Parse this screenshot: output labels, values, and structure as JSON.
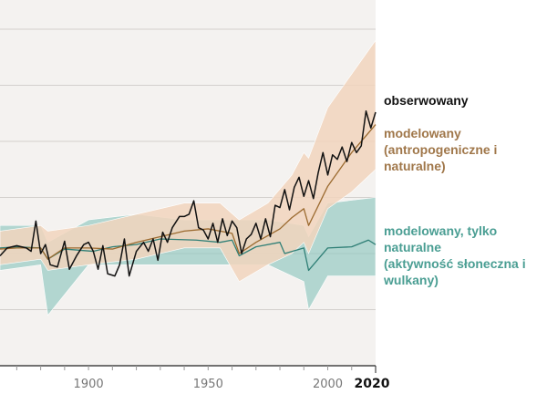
{
  "chart_data": {
    "type": "line",
    "xlim": [
      1863,
      2020
    ],
    "ylim": [
      -1.0,
      2.0
    ],
    "y_gridlines": [
      -0.5,
      0.0,
      0.5,
      1.0,
      1.5,
      2.0
    ],
    "grid": true,
    "x_ticks": [
      "1900",
      "1950",
      "2000"
    ],
    "x_end_label": "2020",
    "colors": {
      "observed": "#111111",
      "anthropogenic": "#9b6a2f",
      "natural": "#2f7f76",
      "anthro_band": "#f1d5bd",
      "natural_band": "#8fc6bf",
      "plot_bg": "#f4f2f0"
    },
    "series": [
      {
        "name": "obserwowany",
        "color": "#111111",
        "x": [
          1863,
          1866,
          1870,
          1874,
          1876,
          1878,
          1880,
          1882,
          1884,
          1887,
          1890,
          1892,
          1895,
          1898,
          1900,
          1902,
          1904,
          1906,
          1908,
          1911,
          1913,
          1915,
          1917,
          1920,
          1923,
          1925,
          1927,
          1929,
          1931,
          1933,
          1935,
          1938,
          1940,
          1942,
          1944,
          1946,
          1948,
          1950,
          1952,
          1954,
          1956,
          1958,
          1960,
          1962,
          1964,
          1966,
          1968,
          1970,
          1972,
          1974,
          1976,
          1978,
          1980,
          1982,
          1984,
          1986,
          1988,
          1990,
          1992,
          1994,
          1996,
          1998,
          2000,
          2002,
          2004,
          2006,
          2008,
          2010,
          2012,
          2014,
          2016,
          2018,
          2020
        ],
        "y": [
          -0.02,
          0.05,
          0.07,
          0.05,
          0.02,
          0.29,
          0.0,
          0.08,
          -0.1,
          -0.12,
          0.11,
          -0.14,
          -0.02,
          0.08,
          0.1,
          0.02,
          -0.14,
          0.07,
          -0.18,
          -0.2,
          -0.1,
          0.13,
          -0.2,
          0.02,
          0.1,
          0.02,
          0.13,
          -0.06,
          0.19,
          0.1,
          0.23,
          0.33,
          0.33,
          0.35,
          0.47,
          0.23,
          0.21,
          0.13,
          0.27,
          0.1,
          0.31,
          0.16,
          0.29,
          0.23,
          0.0,
          0.13,
          0.17,
          0.27,
          0.13,
          0.31,
          0.15,
          0.43,
          0.41,
          0.57,
          0.39,
          0.59,
          0.68,
          0.51,
          0.65,
          0.49,
          0.72,
          0.9,
          0.7,
          0.88,
          0.84,
          0.95,
          0.82,
          0.99,
          0.9,
          0.96,
          1.27,
          1.12,
          1.26
        ]
      },
      {
        "name": "modelowany (antropogeniczne i naturalne)",
        "color": "#9b6a2f",
        "x": [
          1863,
          1870,
          1880,
          1883,
          1890,
          1900,
          1910,
          1920,
          1930,
          1940,
          1950,
          1960,
          1963,
          1970,
          1980,
          1985,
          1990,
          1992,
          2000,
          2010,
          2020
        ],
        "y": [
          0.04,
          0.05,
          0.05,
          -0.05,
          0.05,
          0.05,
          0.04,
          0.1,
          0.15,
          0.2,
          0.22,
          0.18,
          0.0,
          0.1,
          0.22,
          0.32,
          0.4,
          0.25,
          0.6,
          0.9,
          1.15
        ],
        "band_x": [
          1863,
          1880,
          1883,
          1900,
          1920,
          1940,
          1955,
          1963,
          1975,
          1985,
          1990,
          1992,
          2000,
          2010,
          2020
        ],
        "band_low": [
          -0.1,
          -0.05,
          -0.15,
          -0.1,
          -0.05,
          0.05,
          0.05,
          -0.25,
          -0.1,
          0.0,
          0.1,
          0.0,
          0.4,
          0.55,
          0.75
        ],
        "band_high": [
          0.2,
          0.25,
          0.2,
          0.25,
          0.35,
          0.45,
          0.45,
          0.3,
          0.45,
          0.7,
          0.9,
          0.85,
          1.3,
          1.6,
          1.9
        ]
      },
      {
        "name": "modelowany, tylko naturalne (aktywność słoneczna i wulkany)",
        "color": "#2f7f76",
        "x": [
          1863,
          1870,
          1880,
          1883,
          1890,
          1902,
          1910,
          1920,
          1930,
          1945,
          1955,
          1960,
          1963,
          1970,
          1980,
          1982,
          1990,
          1992,
          2000,
          2010,
          2017,
          2020
        ],
        "y": [
          0.05,
          0.06,
          0.05,
          -0.05,
          0.04,
          0.02,
          0.06,
          0.08,
          0.13,
          0.12,
          0.1,
          0.12,
          -0.02,
          0.06,
          0.1,
          0.0,
          0.05,
          -0.15,
          0.05,
          0.06,
          0.12,
          0.08
        ],
        "band_x": [
          1863,
          1880,
          1883,
          1900,
          1920,
          1940,
          1960,
          1975,
          1990,
          1992,
          2000,
          2020
        ],
        "band_low": [
          -0.15,
          -0.1,
          -0.55,
          -0.1,
          -0.1,
          -0.1,
          -0.1,
          -0.1,
          -0.25,
          -0.5,
          -0.2,
          -0.2
        ],
        "band_high": [
          0.25,
          0.25,
          0.1,
          0.3,
          0.35,
          0.3,
          0.3,
          0.3,
          0.25,
          0.15,
          0.45,
          0.5
        ]
      }
    ]
  },
  "legend": {
    "observed": "obserwowany",
    "anthro_line1": "modelowany",
    "anthro_line2": "(antropogeniczne i naturalne)",
    "natural_line1": "modelowany, tylko naturalne",
    "natural_line2": "(aktywność słoneczna i wulkany)"
  }
}
